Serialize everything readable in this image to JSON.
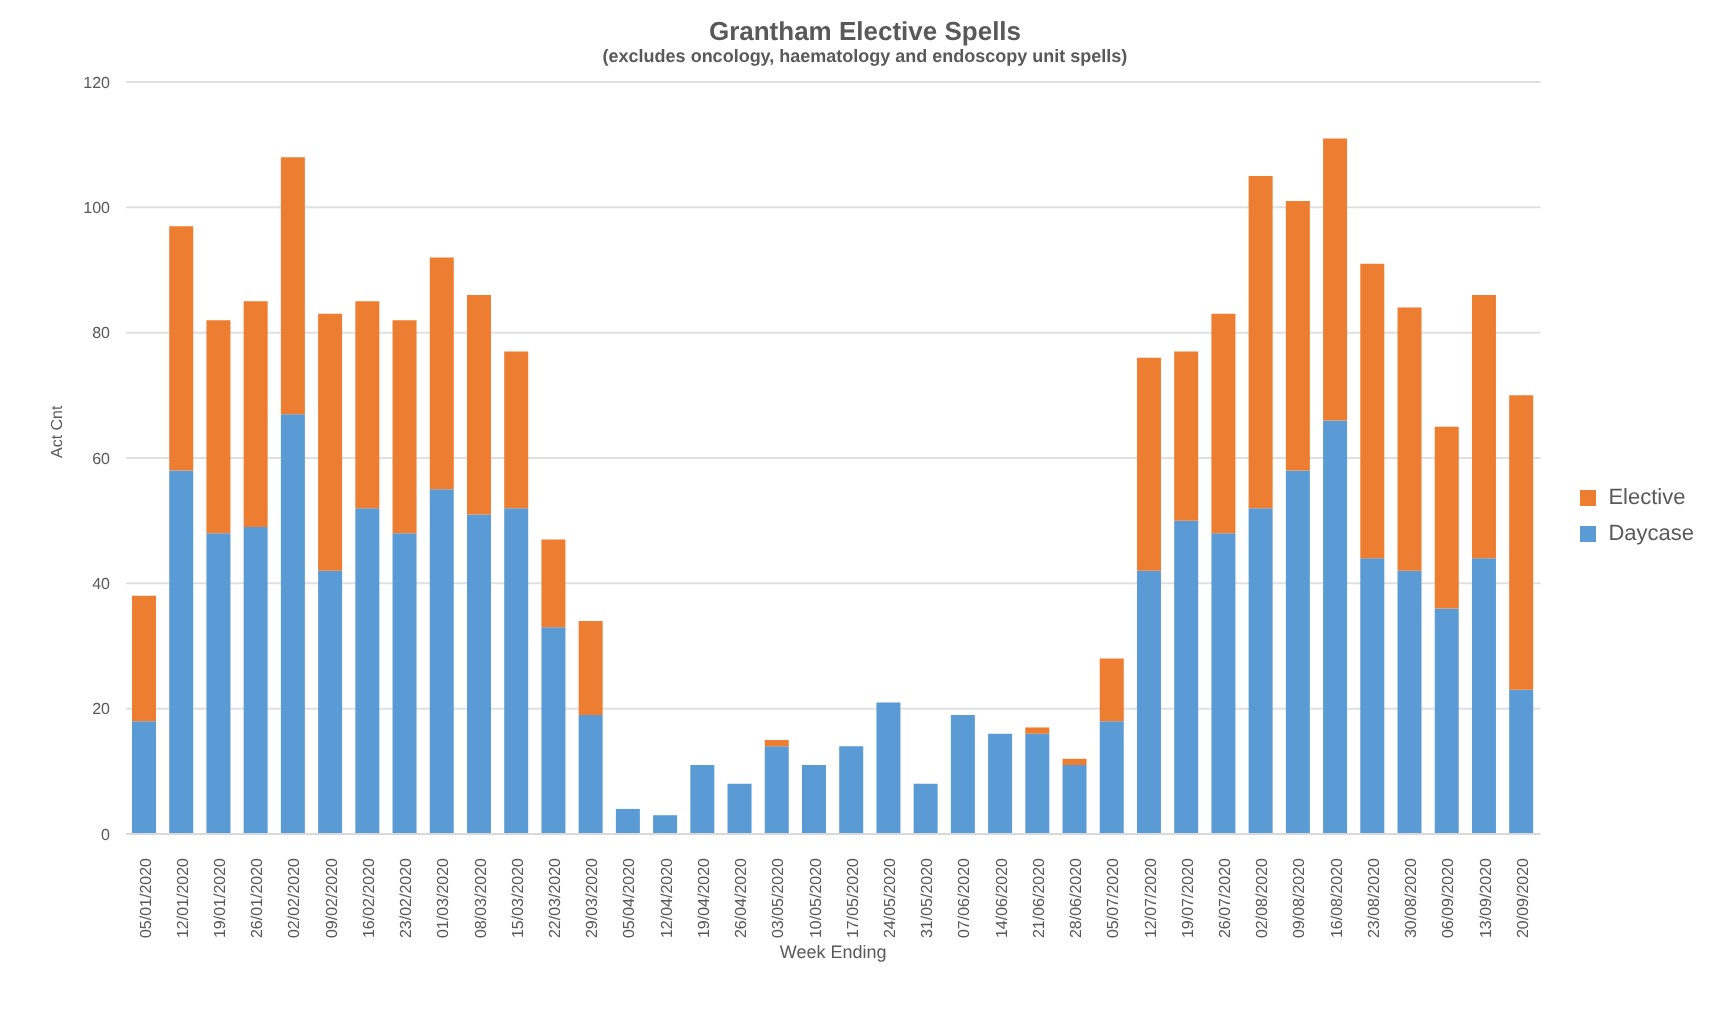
{
  "chart_data": {
    "type": "bar",
    "title": "Grantham Elective Spells",
    "subtitle": "(excludes oncology, haematology and endoscopy unit spells)",
    "xlabel": "Week Ending",
    "ylabel": "Act Cnt",
    "categories": [
      "05/01/2020",
      "12/01/2020",
      "19/01/2020",
      "26/01/2020",
      "02/02/2020",
      "09/02/2020",
      "16/02/2020",
      "23/02/2020",
      "01/03/2020",
      "08/03/2020",
      "15/03/2020",
      "22/03/2020",
      "29/03/2020",
      "05/04/2020",
      "12/04/2020",
      "19/04/2020",
      "26/04/2020",
      "03/05/2020",
      "10/05/2020",
      "17/05/2020",
      "24/05/2020",
      "31/05/2020",
      "07/06/2020",
      "14/06/2020",
      "21/06/2020",
      "28/06/2020",
      "05/07/2020",
      "12/07/2020",
      "19/07/2020",
      "26/07/2020",
      "02/08/2020",
      "09/08/2020",
      "16/08/2020",
      "23/08/2020",
      "30/08/2020",
      "06/09/2020",
      "13/09/2020",
      "20/09/2020"
    ],
    "stacked": true,
    "ylim": [
      0,
      120
    ],
    "yticks": [
      0,
      20,
      40,
      60,
      80,
      100,
      120
    ],
    "grid": "y",
    "legend": "right",
    "series": [
      {
        "name": "Daycase",
        "color": "#5b9bd5",
        "values": [
          18,
          58,
          48,
          49,
          67,
          42,
          52,
          48,
          55,
          51,
          52,
          33,
          19,
          4,
          3,
          11,
          8,
          14,
          11,
          14,
          21,
          8,
          19,
          16,
          16,
          11,
          18,
          42,
          50,
          48,
          52,
          58,
          66,
          44,
          42,
          36,
          44,
          23
        ]
      },
      {
        "name": "Elective",
        "color": "#ed7d31",
        "values": [
          20,
          39,
          34,
          36,
          41,
          41,
          33,
          34,
          37,
          35,
          25,
          14,
          15,
          0,
          0,
          0,
          0,
          1,
          0,
          0,
          0,
          0,
          0,
          0,
          1,
          1,
          10,
          34,
          27,
          35,
          53,
          43,
          45,
          47,
          42,
          29,
          42,
          47
        ]
      }
    ]
  }
}
